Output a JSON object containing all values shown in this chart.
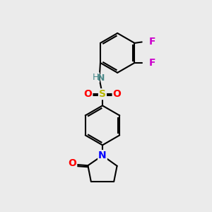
{
  "bg_color": "#ebebeb",
  "bond_color": "#000000",
  "bond_width": 1.5,
  "figsize": [
    3.0,
    3.0
  ],
  "dpi": 100,
  "atoms": {
    "S": {
      "color": "#b8b800",
      "fontsize": 10,
      "fontweight": "bold"
    },
    "O": {
      "color": "#ff0000",
      "fontsize": 10,
      "fontweight": "bold"
    },
    "N_nh": {
      "color": "#4a8a8a",
      "fontsize": 9,
      "fontweight": "bold"
    },
    "N": {
      "color": "#0000ff",
      "fontsize": 10,
      "fontweight": "bold"
    },
    "F": {
      "color": "#cc00cc",
      "fontsize": 10,
      "fontweight": "bold"
    }
  }
}
